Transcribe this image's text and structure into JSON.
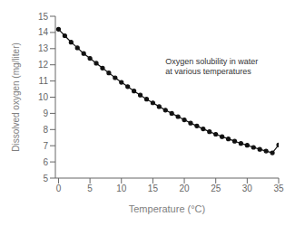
{
  "chart_data": {
    "type": "line",
    "xlabel": "Temperature (°C)",
    "ylabel": "Dissolved oxygen (mg/liter)",
    "annotations": [
      {
        "text": "Oxygen solubility in water\nat various temperatures",
        "x": 17,
        "y": 12.5
      }
    ],
    "x": [
      0,
      1,
      2,
      3,
      4,
      5,
      6,
      7,
      8,
      9,
      10,
      11,
      12,
      13,
      14,
      15,
      16,
      17,
      18,
      19,
      20,
      21,
      22,
      23,
      24,
      25,
      26,
      27,
      28,
      29,
      30,
      31,
      32,
      33,
      34,
      35
    ],
    "values": [
      14.2,
      13.8,
      13.4,
      13.05,
      12.7,
      12.4,
      12.1,
      11.8,
      11.5,
      11.2,
      10.92,
      10.65,
      10.38,
      10.13,
      9.88,
      9.65,
      9.42,
      9.2,
      9.0,
      8.8,
      8.6,
      8.4,
      8.22,
      8.04,
      7.87,
      7.71,
      7.56,
      7.42,
      7.28,
      7.14,
      7.03,
      6.9,
      6.78,
      6.67,
      6.56,
      7.05
    ],
    "color": "#111111",
    "marker": "circle",
    "xlim": [
      -0.5,
      35
    ],
    "ylim": [
      5,
      15
    ],
    "xticks": [
      0,
      5,
      10,
      15,
      20,
      25,
      30,
      35
    ],
    "yticks": [
      5,
      6,
      7,
      8,
      9,
      10,
      11,
      12,
      13,
      14,
      15
    ],
    "grid": false
  }
}
